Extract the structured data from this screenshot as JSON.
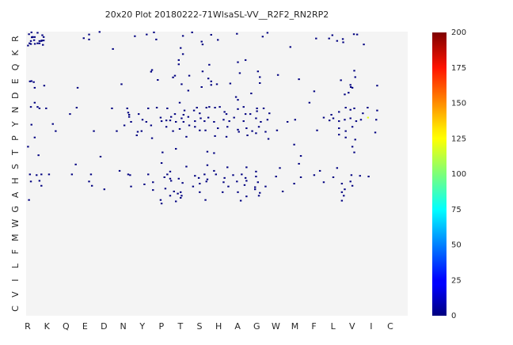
{
  "chart_data": {
    "type": "heatmap",
    "title": "20x20 Plot 20180222-71WlsaSL-VV__R2F2_RN2RP2",
    "xlabel": "",
    "ylabel": "",
    "x_categories": [
      "R",
      "K",
      "Q",
      "E",
      "D",
      "N",
      "Y",
      "P",
      "T",
      "S",
      "H",
      "A",
      "G",
      "W",
      "M",
      "F",
      "L",
      "V",
      "I",
      "C"
    ],
    "y_categories": [
      "R",
      "K",
      "Q",
      "E",
      "D",
      "N",
      "Y",
      "P",
      "T",
      "S",
      "H",
      "A",
      "G",
      "W",
      "M",
      "F",
      "L",
      "I",
      "V",
      "C"
    ],
    "colorbar": {
      "min": 0,
      "max": 200,
      "ticks": [
        0,
        25,
        50,
        75,
        100,
        125,
        150,
        175,
        200
      ],
      "colormap": "jet"
    },
    "background_color": "#f4f4f4",
    "grid": false,
    "points": [
      [
        0.1,
        0.98,
        0
      ],
      [
        0.15,
        0.18,
        0
      ],
      [
        0.28,
        0.05,
        0
      ],
      [
        0.3,
        0.4,
        0
      ],
      [
        0.32,
        0.38,
        0
      ],
      [
        0.35,
        0.38,
        0
      ],
      [
        0.45,
        0.38,
        0
      ],
      [
        0.6,
        0.08,
        0
      ],
      [
        0.85,
        0.25,
        0
      ],
      [
        0.92,
        0.38,
        0
      ],
      [
        0.42,
        0.6,
        0
      ],
      [
        0.25,
        0.66,
        0
      ],
      [
        0.7,
        0.66,
        0
      ],
      [
        0.8,
        0.66,
        0
      ],
      [
        0.82,
        0.62,
        0
      ],
      [
        0.92,
        0.62,
        0
      ],
      [
        0.46,
        0.86,
        0
      ],
      [
        0.18,
        0.82,
        0
      ],
      [
        0.6,
        0.82,
        0
      ],
      [
        0.7,
        0.82,
        0
      ],
      [
        0.25,
        0.87,
        0
      ],
      [
        0.88,
        0.93,
        0
      ],
      [
        3.02,
        0.46,
        0
      ],
      [
        3.3,
        0.2,
        0
      ],
      [
        3.3,
        0.55,
        0
      ],
      [
        3.85,
        0.02,
        0
      ],
      [
        4.55,
        1.22,
        0
      ],
      [
        5.7,
        0.32,
        0
      ],
      [
        6.32,
        0.2,
        0
      ],
      [
        6.7,
        0.05,
        0
      ],
      [
        6.82,
        0.55,
        0
      ],
      [
        8.22,
        0.3,
        0
      ],
      [
        8.7,
        0.05,
        0
      ],
      [
        9.2,
        0.7,
        0
      ],
      [
        9.25,
        0.9,
        0
      ],
      [
        8.1,
        1.15,
        0
      ],
      [
        8.22,
        1.58,
        0
      ],
      [
        9.7,
        0.22,
        0
      ],
      [
        10.05,
        0.58,
        0
      ],
      [
        11.05,
        0.15,
        0
      ],
      [
        12.4,
        0.35,
        0
      ],
      [
        12.65,
        0.08,
        0
      ],
      [
        13.85,
        1.08,
        0
      ],
      [
        16.05,
        0.25,
        0
      ],
      [
        16.6,
        0.52,
        0
      ],
      [
        16.62,
        0.75,
        0
      ],
      [
        17.18,
        0.18,
        0
      ],
      [
        17.35,
        0.2,
        0
      ],
      [
        15.2,
        0.48,
        0
      ],
      [
        15.88,
        0.48,
        0
      ],
      [
        17.7,
        0.9,
        0
      ],
      [
        16.3,
        0.65,
        0
      ],
      [
        8.0,
        2.0,
        0
      ],
      [
        8.0,
        2.3,
        0
      ],
      [
        11.1,
        2.15,
        0
      ],
      [
        9.6,
        2.33,
        0
      ],
      [
        6.6,
        2.7,
        0
      ],
      [
        6.55,
        2.82,
        0
      ],
      [
        8.55,
        3.1,
        0
      ],
      [
        11.2,
        2.92,
        0
      ],
      [
        11.5,
        2.0,
        0
      ],
      [
        12.15,
        2.8,
        0
      ],
      [
        12.25,
        3.2,
        0
      ],
      [
        13.2,
        3.05,
        0
      ],
      [
        14.3,
        3.35,
        0
      ],
      [
        16.5,
        3.42,
        0
      ],
      [
        17.2,
        2.75,
        0
      ],
      [
        17.25,
        3.2,
        0
      ],
      [
        18.4,
        3.8,
        0
      ],
      [
        9.25,
        2.8,
        0
      ],
      [
        9.7,
        3.5,
        0
      ],
      [
        10.0,
        3.7,
        0
      ],
      [
        10.7,
        3.65,
        0
      ],
      [
        8.15,
        3.7,
        0
      ],
      [
        7.8,
        3.1,
        0
      ],
      [
        9.2,
        3.9,
        0
      ],
      [
        0.2,
        3.5,
        0
      ],
      [
        0.28,
        3.48,
        0
      ],
      [
        0.4,
        3.55,
        0
      ],
      [
        0.45,
        3.95,
        0
      ],
      [
        0.95,
        3.8,
        0
      ],
      [
        2.7,
        3.95,
        0
      ],
      [
        5.0,
        3.7,
        0
      ],
      [
        6.9,
        3.4,
        0
      ],
      [
        7.7,
        3.22,
        0
      ],
      [
        9.55,
        3.3,
        0
      ],
      [
        9.7,
        3.75,
        0
      ],
      [
        12.25,
        3.62,
        0
      ],
      [
        15.1,
        4.2,
        0
      ],
      [
        16.7,
        4.42,
        0
      ],
      [
        17.02,
        3.9,
        0
      ],
      [
        16.9,
        4.3,
        0
      ],
      [
        17.0,
        3.75,
        0
      ],
      [
        17.1,
        3.95,
        0
      ],
      [
        8.05,
        5.0,
        0
      ],
      [
        8.5,
        4.15,
        0
      ],
      [
        11.8,
        4.35,
        0
      ],
      [
        11.0,
        4.6,
        0
      ],
      [
        11.1,
        4.8,
        0
      ],
      [
        14.85,
        5.0,
        0
      ],
      [
        0.25,
        5.3,
        0
      ],
      [
        0.45,
        5.0,
        0
      ],
      [
        0.7,
        5.4,
        0
      ],
      [
        1.05,
        5.4,
        0
      ],
      [
        0.6,
        5.3,
        0
      ],
      [
        2.3,
        5.8,
        0
      ],
      [
        2.65,
        5.35,
        0
      ],
      [
        4.5,
        5.4,
        0
      ],
      [
        5.3,
        5.4,
        0
      ],
      [
        5.35,
        5.7,
        0
      ],
      [
        5.4,
        5.85,
        0
      ],
      [
        5.9,
        5.8,
        0
      ],
      [
        6.4,
        5.4,
        0
      ],
      [
        6.85,
        5.35,
        0
      ],
      [
        7.4,
        5.4,
        0
      ],
      [
        7.8,
        5.8,
        0
      ],
      [
        8.25,
        5.85,
        0
      ],
      [
        8.3,
        5.55,
        0
      ],
      [
        8.8,
        5.55,
        0
      ],
      [
        8.95,
        5.35,
        0
      ],
      [
        9.1,
        5.75,
        0
      ],
      [
        9.45,
        5.35,
        0
      ],
      [
        9.6,
        5.3,
        0
      ],
      [
        9.9,
        5.35,
        0
      ],
      [
        10.15,
        5.3,
        0
      ],
      [
        10.5,
        5.8,
        0
      ],
      [
        10.4,
        5.65,
        0
      ],
      [
        11.1,
        5.45,
        0
      ],
      [
        11.4,
        5.3,
        0
      ],
      [
        11.5,
        5.8,
        0
      ],
      [
        11.75,
        5.8,
        0
      ],
      [
        12.1,
        5.4,
        0
      ],
      [
        12.1,
        5.6,
        0
      ],
      [
        12.45,
        5.4,
        0
      ],
      [
        12.75,
        5.75,
        0
      ],
      [
        16.0,
        5.85,
        0
      ],
      [
        16.4,
        5.65,
        0
      ],
      [
        16.75,
        5.35,
        0
      ],
      [
        17.0,
        5.5,
        0
      ],
      [
        17.2,
        5.4,
        0
      ],
      [
        17.65,
        5.75,
        0
      ],
      [
        17.9,
        5.35,
        0
      ],
      [
        18.4,
        5.55,
        0
      ],
      [
        5.4,
        6.0,
        0
      ],
      [
        5.5,
        6.35,
        0
      ],
      [
        6.1,
        6.2,
        0
      ],
      [
        6.3,
        6.35,
        0
      ],
      [
        7.05,
        6.05,
        0
      ],
      [
        7.1,
        6.3,
        0
      ],
      [
        7.35,
        6.25,
        0
      ],
      [
        7.55,
        6.25,
        0
      ],
      [
        7.6,
        6.0,
        0
      ],
      [
        7.85,
        6.35,
        0
      ],
      [
        8.15,
        6.1,
        0
      ],
      [
        8.25,
        6.35,
        0
      ],
      [
        8.5,
        6.0,
        0
      ],
      [
        8.85,
        6.3,
        0
      ],
      [
        9.15,
        6.1,
        0
      ],
      [
        9.35,
        6.3,
        0
      ],
      [
        9.55,
        6.05,
        0
      ],
      [
        9.85,
        6.35,
        0
      ],
      [
        10.35,
        6.2,
        0
      ],
      [
        10.65,
        6.3,
        0
      ],
      [
        10.9,
        6.05,
        0
      ],
      [
        11.4,
        6.3,
        0
      ],
      [
        12.05,
        6.1,
        0
      ],
      [
        12.3,
        6.35,
        0
      ],
      [
        12.65,
        6.2,
        0
      ],
      [
        13.7,
        6.35,
        0
      ],
      [
        14.1,
        6.2,
        0
      ],
      [
        15.6,
        6.05,
        0
      ],
      [
        15.9,
        6.25,
        0
      ],
      [
        16.1,
        6.1,
        0
      ],
      [
        16.4,
        6.3,
        0
      ],
      [
        16.7,
        6.2,
        0
      ],
      [
        17.0,
        6.1,
        0
      ],
      [
        17.3,
        6.3,
        0
      ],
      [
        17.55,
        6.2,
        0
      ],
      [
        18.35,
        6.2,
        0
      ],
      [
        17.92,
        6.05,
        120
      ],
      [
        0.28,
        6.55,
        0
      ],
      [
        1.4,
        6.5,
        0
      ],
      [
        1.55,
        7.0,
        0
      ],
      [
        3.55,
        7.0,
        0
      ],
      [
        4.75,
        7.0,
        0
      ],
      [
        5.15,
        6.6,
        0
      ],
      [
        5.85,
        7.05,
        0
      ],
      [
        6.05,
        7.0,
        0
      ],
      [
        6.55,
        6.6,
        0
      ],
      [
        7.35,
        6.7,
        0
      ],
      [
        7.7,
        7.0,
        0
      ],
      [
        8.05,
        6.85,
        0
      ],
      [
        8.55,
        6.6,
        0
      ],
      [
        8.85,
        6.7,
        0
      ],
      [
        9.1,
        6.95,
        0
      ],
      [
        9.4,
        6.95,
        0
      ],
      [
        10.05,
        6.8,
        0
      ],
      [
        10.55,
        6.7,
        0
      ],
      [
        11.1,
        6.9,
        0
      ],
      [
        11.55,
        6.8,
        0
      ],
      [
        11.85,
        7.0,
        0
      ],
      [
        12.2,
        6.7,
        0
      ],
      [
        12.55,
        7.05,
        0
      ],
      [
        13.15,
        6.95,
        0
      ],
      [
        15.25,
        6.95,
        0
      ],
      [
        16.4,
        6.8,
        0
      ],
      [
        16.75,
        7.0,
        0
      ],
      [
        17.1,
        6.7,
        0
      ],
      [
        18.3,
        7.1,
        0
      ],
      [
        0.45,
        7.45,
        0
      ],
      [
        5.8,
        7.3,
        0
      ],
      [
        6.6,
        7.5,
        0
      ],
      [
        8.4,
        7.4,
        0
      ],
      [
        9.9,
        7.35,
        0
      ],
      [
        10.5,
        7.4,
        0
      ],
      [
        11.15,
        7.05,
        0
      ],
      [
        11.6,
        7.3,
        0
      ],
      [
        12.05,
        7.15,
        0
      ],
      [
        12.7,
        7.55,
        0
      ],
      [
        14.05,
        7.95,
        0
      ],
      [
        16.4,
        7.25,
        0
      ],
      [
        16.75,
        7.45,
        0
      ],
      [
        17.25,
        7.6,
        0
      ],
      [
        0.1,
        8.1,
        0
      ],
      [
        0.65,
        8.7,
        0
      ],
      [
        3.9,
        8.8,
        0
      ],
      [
        7.15,
        8.5,
        0
      ],
      [
        7.85,
        8.25,
        0
      ],
      [
        9.5,
        8.45,
        0
      ],
      [
        9.85,
        8.55,
        0
      ],
      [
        14.4,
        8.75,
        0
      ],
      [
        17.1,
        8.1,
        0
      ],
      [
        17.2,
        8.5,
        0
      ],
      [
        2.6,
        9.35,
        0
      ],
      [
        4.9,
        9.8,
        0
      ],
      [
        7.1,
        9.25,
        0
      ],
      [
        7.55,
        9.85,
        0
      ],
      [
        8.4,
        9.5,
        0
      ],
      [
        9.5,
        9.4,
        0
      ],
      [
        9.85,
        9.8,
        0
      ],
      [
        10.55,
        9.55,
        0
      ],
      [
        11.55,
        9.55,
        0
      ],
      [
        12.05,
        9.85,
        0
      ],
      [
        13.3,
        9.6,
        0
      ],
      [
        14.3,
        9.3,
        0
      ],
      [
        15.4,
        9.8,
        0
      ],
      [
        16.3,
        9.6,
        0
      ],
      [
        0.2,
        10.05,
        0
      ],
      [
        0.55,
        10.1,
        0
      ],
      [
        0.8,
        10.05,
        0
      ],
      [
        1.2,
        10.05,
        0
      ],
      [
        2.4,
        10.05,
        0
      ],
      [
        3.4,
        10.05,
        0
      ],
      [
        5.35,
        10.05,
        0
      ],
      [
        5.45,
        10.1,
        0
      ],
      [
        6.4,
        10.05,
        0
      ],
      [
        7.25,
        10.25,
        0
      ],
      [
        7.4,
        10.05,
        0
      ],
      [
        7.55,
        10.35,
        0
      ],
      [
        8.0,
        10.35,
        0
      ],
      [
        8.85,
        10.15,
        0
      ],
      [
        9.05,
        10.3,
        0
      ],
      [
        9.35,
        10.05,
        0
      ],
      [
        9.5,
        10.4,
        0
      ],
      [
        9.95,
        10.05,
        0
      ],
      [
        10.4,
        10.3,
        0
      ],
      [
        10.85,
        10.1,
        0
      ],
      [
        11.3,
        10.05,
        0
      ],
      [
        11.5,
        10.3,
        0
      ],
      [
        12.05,
        10.2,
        0
      ],
      [
        13.1,
        10.2,
        0
      ],
      [
        14.4,
        10.25,
        0
      ],
      [
        15.1,
        10.1,
        0
      ],
      [
        16.1,
        10.25,
        0
      ],
      [
        17.05,
        10.1,
        0
      ],
      [
        17.5,
        10.15,
        0
      ],
      [
        17.95,
        10.2,
        0
      ],
      [
        0.25,
        10.55,
        0
      ],
      [
        0.7,
        10.5,
        0
      ],
      [
        0.8,
        10.85,
        0
      ],
      [
        3.3,
        10.55,
        0
      ],
      [
        3.45,
        10.85,
        0
      ],
      [
        5.5,
        10.9,
        0
      ],
      [
        6.2,
        10.75,
        0
      ],
      [
        6.65,
        10.6,
        0
      ],
      [
        7.6,
        10.5,
        0
      ],
      [
        8.2,
        10.65,
        0
      ],
      [
        8.75,
        10.9,
        0
      ],
      [
        9.1,
        10.7,
        0
      ],
      [
        9.45,
        10.55,
        0
      ],
      [
        10.35,
        10.6,
        0
      ],
      [
        10.6,
        10.9,
        0
      ],
      [
        11.05,
        10.55,
        0
      ],
      [
        11.45,
        10.8,
        0
      ],
      [
        11.55,
        10.5,
        0
      ],
      [
        12.0,
        10.95,
        0
      ],
      [
        12.15,
        10.6,
        0
      ],
      [
        12.55,
        10.9,
        0
      ],
      [
        14.05,
        10.7,
        0
      ],
      [
        15.6,
        10.6,
        0
      ],
      [
        16.55,
        10.7,
        0
      ],
      [
        17.0,
        10.55,
        0
      ],
      [
        17.1,
        10.85,
        0
      ],
      [
        4.1,
        11.1,
        0
      ],
      [
        6.65,
        11.15,
        0
      ],
      [
        7.3,
        11.05,
        0
      ],
      [
        7.75,
        11.25,
        0
      ],
      [
        7.95,
        11.4,
        0
      ],
      [
        8.1,
        11.3,
        0
      ],
      [
        9.1,
        11.3,
        0
      ],
      [
        10.3,
        11.3,
        0
      ],
      [
        11.1,
        11.3,
        0
      ],
      [
        12.0,
        11.1,
        0
      ],
      [
        12.25,
        11.35,
        0
      ],
      [
        13.45,
        11.25,
        0
      ],
      [
        16.55,
        11.3,
        0
      ],
      [
        16.7,
        11.1,
        0
      ],
      [
        0.15,
        11.85,
        0
      ],
      [
        7.05,
        11.85,
        0
      ],
      [
        7.55,
        11.55,
        0
      ],
      [
        7.85,
        11.95,
        0
      ],
      [
        8.1,
        11.7,
        0
      ],
      [
        8.15,
        11.55,
        0
      ],
      [
        9.4,
        11.85,
        0
      ],
      [
        11.25,
        11.9,
        0
      ],
      [
        11.55,
        11.6,
        0
      ],
      [
        12.2,
        11.55,
        0
      ],
      [
        16.55,
        11.9,
        0
      ],
      [
        16.65,
        11.55,
        0
      ],
      [
        7.1,
        12.1,
        0
      ]
    ]
  }
}
